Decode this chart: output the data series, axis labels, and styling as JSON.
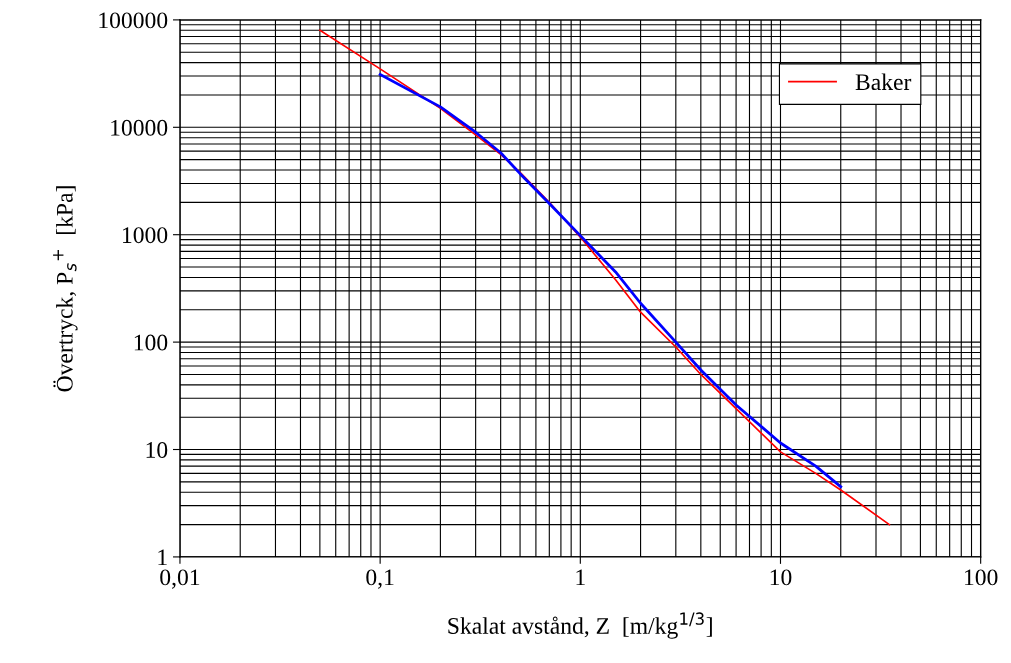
{
  "chart_data": {
    "type": "line",
    "xlabel": "Skalat avstånd, Z  [m/kg$^{1/3}$]",
    "ylabel": "Övertryck, P$_{s}$$^{+}$  [kPa]",
    "log": "xy",
    "grid": true,
    "legend": "top right",
    "marker": "none",
    "line_style": "solid",
    "xlim": [
      0.01,
      100
    ],
    "xticks": [
      {
        "value": 0.01,
        "label": "0,01"
      },
      {
        "value": 0.1,
        "label": "0,1"
      },
      1,
      10,
      100
    ],
    "ylim": [
      1,
      100000
    ],
    "yticks": [
      1,
      10,
      100,
      1000,
      10000,
      100000
    ],
    "series": [
      {
        "name": "Baker",
        "color": "#ff0000",
        "x": [
          0.05,
          0.1,
          0.2,
          0.3,
          0.4,
          0.5,
          0.7,
          1,
          1.5,
          2,
          3,
          4,
          6,
          10,
          15,
          20,
          35
        ],
        "values": [
          80000,
          35000,
          15000,
          8500,
          5600,
          3800,
          2000,
          950,
          380,
          190,
          90,
          50,
          24,
          9.5,
          6,
          4.2,
          2
        ]
      },
      {
        "color": "#0000ff",
        "x": [
          0.1,
          0.2,
          0.3,
          0.4,
          0.5,
          0.7,
          1,
          1.5,
          2,
          3,
          4,
          6,
          10,
          15,
          20
        ],
        "values": [
          31000,
          15500,
          9000,
          5800,
          3700,
          1950,
          980,
          450,
          230,
          100,
          55,
          26,
          11.5,
          7,
          4.5
        ]
      }
    ]
  }
}
